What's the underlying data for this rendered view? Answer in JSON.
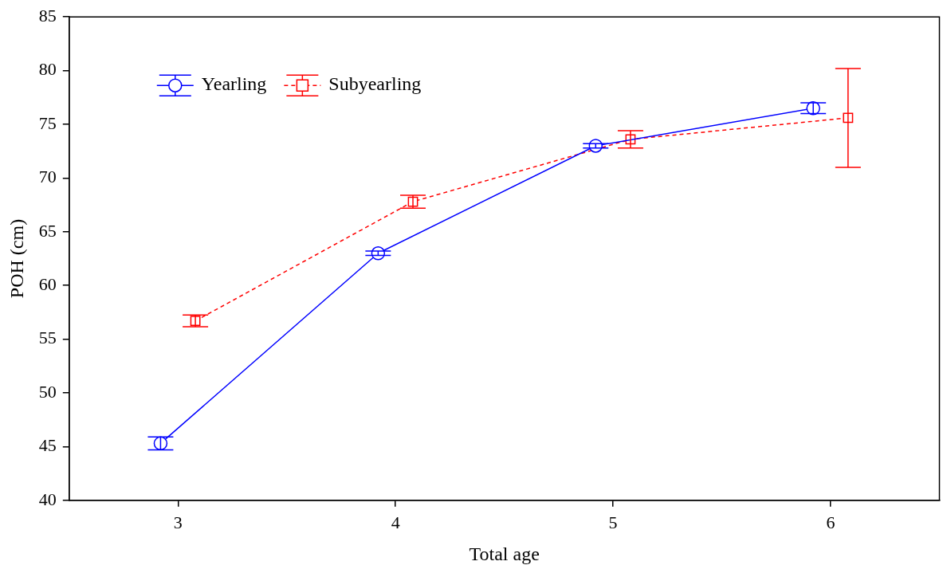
{
  "chart_data": {
    "type": "line",
    "xlabel": "Total age",
    "ylabel": "POH (cm)",
    "xlim": [
      2.5,
      6.5
    ],
    "xticks": [
      3,
      4,
      5,
      6
    ],
    "ylim": [
      40,
      85
    ],
    "yticks": [
      40,
      45,
      50,
      55,
      60,
      65,
      70,
      75,
      80,
      85
    ],
    "grid": false,
    "legend": "top left",
    "series": [
      {
        "name": "Yearling",
        "color": "#0000ff",
        "marker": "circle",
        "line_style": "solid",
        "x": [
          2.92,
          3.92,
          4.92,
          5.92
        ],
        "values": [
          45.3,
          63.0,
          73.0,
          76.5
        ],
        "errors": [
          0.6,
          0.2,
          0.2,
          0.5
        ]
      },
      {
        "name": "Subyearling",
        "color": "#ff0000",
        "marker": "square",
        "line_style": "dashed",
        "x": [
          3.08,
          4.08,
          5.08,
          6.08
        ],
        "values": [
          56.7,
          67.8,
          73.6,
          75.6
        ],
        "errors": [
          0.55,
          0.6,
          0.8,
          4.6
        ]
      }
    ]
  }
}
